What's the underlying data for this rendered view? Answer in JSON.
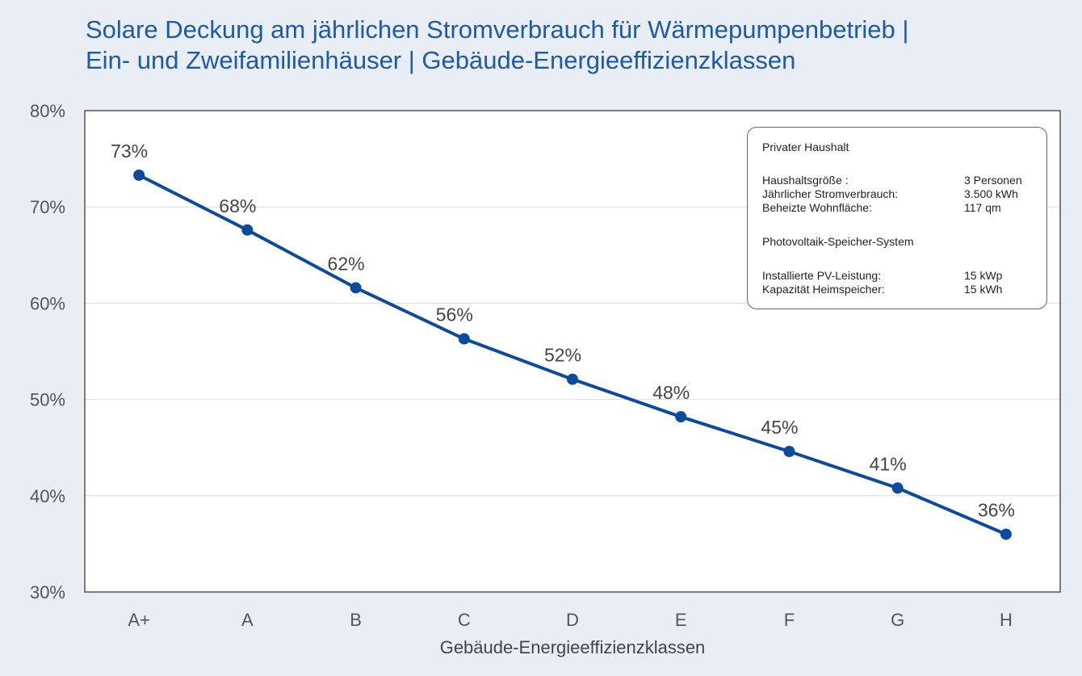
{
  "chart_data": {
    "type": "line",
    "title": "Solare Deckung am jährlichen Stromverbrauch für Wärmepumpenbetrieb | Ein- und Zweifamilienhäuser | Gebäude-Energieeffizienzklassen",
    "title_lines": [
      "Solare Deckung am jährlichen Stromverbrauch für Wärmepumpenbetrieb |",
      "Ein- und Zweifamilienhäuser | Gebäude-Energieeffizienzklassen"
    ],
    "xlabel": "Gebäude-Energieeffizienzklassen",
    "ylabel": "",
    "categories": [
      "A+",
      "A",
      "B",
      "C",
      "D",
      "E",
      "F",
      "G",
      "H"
    ],
    "values": [
      73.3,
      67.6,
      61.6,
      56.3,
      52.1,
      48.2,
      44.6,
      40.8,
      36.0
    ],
    "data_labels": [
      "73%",
      "68%",
      "62%",
      "56%",
      "52%",
      "48%",
      "45%",
      "41%",
      "36%"
    ],
    "ylim": [
      30,
      80
    ],
    "yticks": [
      30,
      40,
      50,
      60,
      70,
      80
    ],
    "ytick_labels": [
      "30%",
      "40%",
      "50%",
      "60%",
      "70%",
      "80%"
    ],
    "grid": "horizontal",
    "colors": {
      "line": "#0b4a9e",
      "title": "#1f5aa6",
      "background": "#e9eef5"
    }
  },
  "legend_box": {
    "heading1": "Privater Haushalt",
    "rows1": [
      {
        "key": "Haushaltsgröße   :",
        "value": "3 Personen"
      },
      {
        "key": "Jährlicher Stromverbrauch:",
        "value": "3.500 kWh"
      },
      {
        "key": "Beheizte Wohnfläche:",
        "value": "117 qm"
      }
    ],
    "heading2": "Photovoltaik-Speicher-System",
    "rows2": [
      {
        "key": "Installierte PV-Leistung:",
        "value": "15 kWp"
      },
      {
        "key": "Kapazität Heimspeicher:",
        "value": "15 kWh"
      }
    ]
  }
}
